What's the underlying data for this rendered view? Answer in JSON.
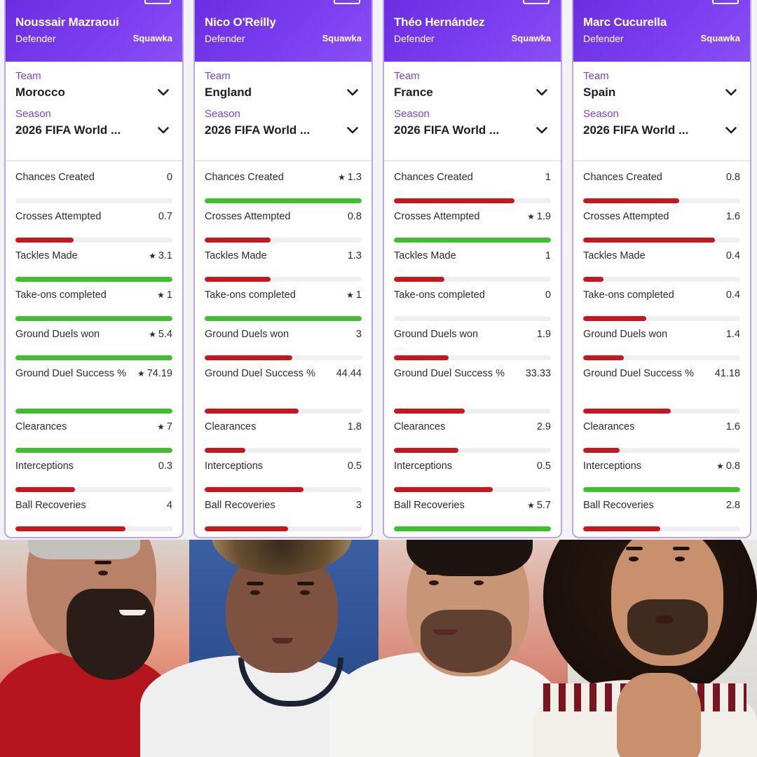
{
  "colors": {
    "header_purple": "#7b3df0",
    "label_purple": "#7b3df0",
    "bar_green": "#3fbf2b",
    "bar_red": "#c9151b",
    "track": "#eeeef3"
  },
  "icons": {
    "select": "chevron-down-icon",
    "best": "star-icon"
  },
  "cards": [
    {
      "name": "Noussair Mazraoui",
      "position": "Defender",
      "brand": "Squawka",
      "team_label": "Team",
      "team": "Morocco",
      "season_label": "Season",
      "season": "2026 FIFA World ...",
      "stats": [
        {
          "label": "Chances Created",
          "value": "0",
          "star": false,
          "fill": 0,
          "color": "red"
        },
        {
          "label": "Crosses Attempted",
          "value": "0.7",
          "star": false,
          "fill": 0.37,
          "color": "red"
        },
        {
          "label": "Tackles Made",
          "value": "3.1",
          "star": true,
          "fill": 1,
          "color": "green"
        },
        {
          "label": "Take-ons completed",
          "value": "1",
          "star": true,
          "fill": 1,
          "color": "green"
        },
        {
          "label": "Ground Duels won",
          "value": "5.4",
          "star": true,
          "fill": 1,
          "color": "green"
        },
        {
          "label": "Ground Duel Success %",
          "value": "74.19",
          "star": true,
          "fill": 1,
          "color": "green"
        },
        {
          "label": "Clearances",
          "value": "7",
          "star": true,
          "fill": 1,
          "color": "green"
        },
        {
          "label": "Interceptions",
          "value": "0.3",
          "star": false,
          "fill": 0.38,
          "color": "red"
        },
        {
          "label": "Ball Recoveries",
          "value": "4",
          "star": false,
          "fill": 0.7,
          "color": "red"
        }
      ]
    },
    {
      "name": "Nico O'Reilly",
      "position": "Defender",
      "brand": "Squawka",
      "team_label": "Team",
      "team": "England",
      "season_label": "Season",
      "season": "2026 FIFA World ...",
      "stats": [
        {
          "label": "Chances Created",
          "value": "1.3",
          "star": true,
          "fill": 1,
          "color": "green"
        },
        {
          "label": "Crosses Attempted",
          "value": "0.8",
          "star": false,
          "fill": 0.42,
          "color": "red"
        },
        {
          "label": "Tackles Made",
          "value": "1.3",
          "star": false,
          "fill": 0.42,
          "color": "red"
        },
        {
          "label": "Take-ons completed",
          "value": "1",
          "star": true,
          "fill": 1,
          "color": "green"
        },
        {
          "label": "Ground Duels won",
          "value": "3",
          "star": false,
          "fill": 0.56,
          "color": "red"
        },
        {
          "label": "Ground Duel Success %",
          "value": "44.44",
          "star": false,
          "fill": 0.6,
          "color": "red"
        },
        {
          "label": "Clearances",
          "value": "1.8",
          "star": false,
          "fill": 0.26,
          "color": "red"
        },
        {
          "label": "Interceptions",
          "value": "0.5",
          "star": false,
          "fill": 0.63,
          "color": "red"
        },
        {
          "label": "Ball Recoveries",
          "value": "3",
          "star": false,
          "fill": 0.53,
          "color": "red"
        }
      ]
    },
    {
      "name": "Théo Hernández",
      "position": "Defender",
      "brand": "Squawka",
      "team_label": "Team",
      "team": "France",
      "season_label": "Season",
      "season": "2026 FIFA World ...",
      "stats": [
        {
          "label": "Chances Created",
          "value": "1",
          "star": false,
          "fill": 0.77,
          "color": "red"
        },
        {
          "label": "Crosses Attempted",
          "value": "1.9",
          "star": true,
          "fill": 1,
          "color": "green"
        },
        {
          "label": "Tackles Made",
          "value": "1",
          "star": false,
          "fill": 0.32,
          "color": "red"
        },
        {
          "label": "Take-ons completed",
          "value": "0",
          "star": false,
          "fill": 0,
          "color": "red"
        },
        {
          "label": "Ground Duels won",
          "value": "1.9",
          "star": false,
          "fill": 0.35,
          "color": "red"
        },
        {
          "label": "Ground Duel Success %",
          "value": "33.33",
          "star": false,
          "fill": 0.45,
          "color": "red"
        },
        {
          "label": "Clearances",
          "value": "2.9",
          "star": false,
          "fill": 0.41,
          "color": "red"
        },
        {
          "label": "Interceptions",
          "value": "0.5",
          "star": false,
          "fill": 0.63,
          "color": "red"
        },
        {
          "label": "Ball Recoveries",
          "value": "5.7",
          "star": true,
          "fill": 1,
          "color": "green"
        }
      ]
    },
    {
      "name": "Marc Cucurella",
      "position": "Defender",
      "brand": "Squawka",
      "team_label": "Team",
      "team": "Spain",
      "season_label": "Season",
      "season": "2026 FIFA World ...",
      "stats": [
        {
          "label": "Chances Created",
          "value": "0.8",
          "star": false,
          "fill": 0.61,
          "color": "red"
        },
        {
          "label": "Crosses Attempted",
          "value": "1.6",
          "star": false,
          "fill": 0.84,
          "color": "red"
        },
        {
          "label": "Tackles Made",
          "value": "0.4",
          "star": false,
          "fill": 0.13,
          "color": "red"
        },
        {
          "label": "Take-ons completed",
          "value": "0.4",
          "star": false,
          "fill": 0.4,
          "color": "red"
        },
        {
          "label": "Ground Duels won",
          "value": "1.4",
          "star": false,
          "fill": 0.26,
          "color": "red"
        },
        {
          "label": "Ground Duel Success %",
          "value": "41.18",
          "star": false,
          "fill": 0.56,
          "color": "red"
        },
        {
          "label": "Clearances",
          "value": "1.6",
          "star": false,
          "fill": 0.23,
          "color": "red"
        },
        {
          "label": "Interceptions",
          "value": "0.8",
          "star": true,
          "fill": 1,
          "color": "green"
        },
        {
          "label": "Ball Recoveries",
          "value": "2.8",
          "star": false,
          "fill": 0.49,
          "color": "red"
        }
      ]
    }
  ]
}
